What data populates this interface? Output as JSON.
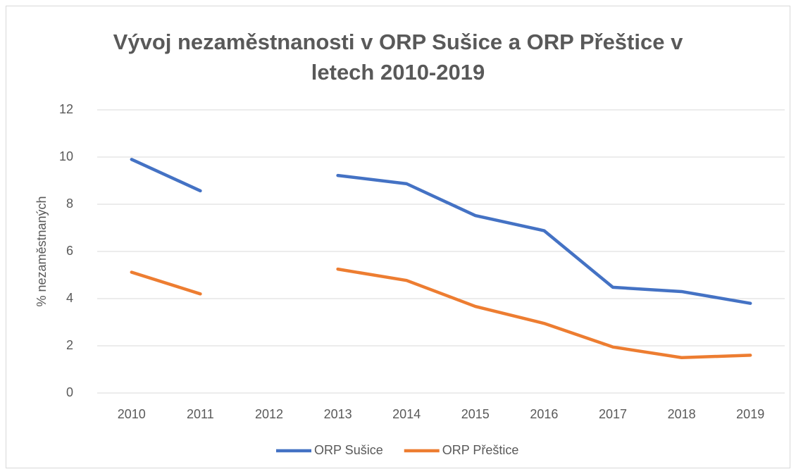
{
  "chart_data": {
    "type": "line",
    "title": "Vývoj nezaměstnanosti v ORP Sušice a ORP Přeštice v letech 2010-2019",
    "y_label": "% nezaměstnaných",
    "categories": [
      "2010",
      "2011",
      "2012",
      "2013",
      "2014",
      "2015",
      "2016",
      "2017",
      "2018",
      "2019"
    ],
    "series": [
      {
        "name": "ORP Sušice",
        "color": "#4472c4",
        "values": [
          9.9,
          8.57,
          null,
          9.22,
          8.87,
          7.52,
          6.88,
          4.48,
          4.3,
          3.8
        ]
      },
      {
        "name": "ORP Přeštice",
        "color": "#ed7d31",
        "values": [
          5.12,
          4.2,
          null,
          5.25,
          4.77,
          3.67,
          2.95,
          1.95,
          1.5,
          1.6
        ]
      }
    ],
    "ylim": [
      0,
      12
    ],
    "yticks": [
      0,
      2,
      4,
      6,
      8,
      10,
      12
    ],
    "grid": true,
    "legend": "bottom"
  }
}
